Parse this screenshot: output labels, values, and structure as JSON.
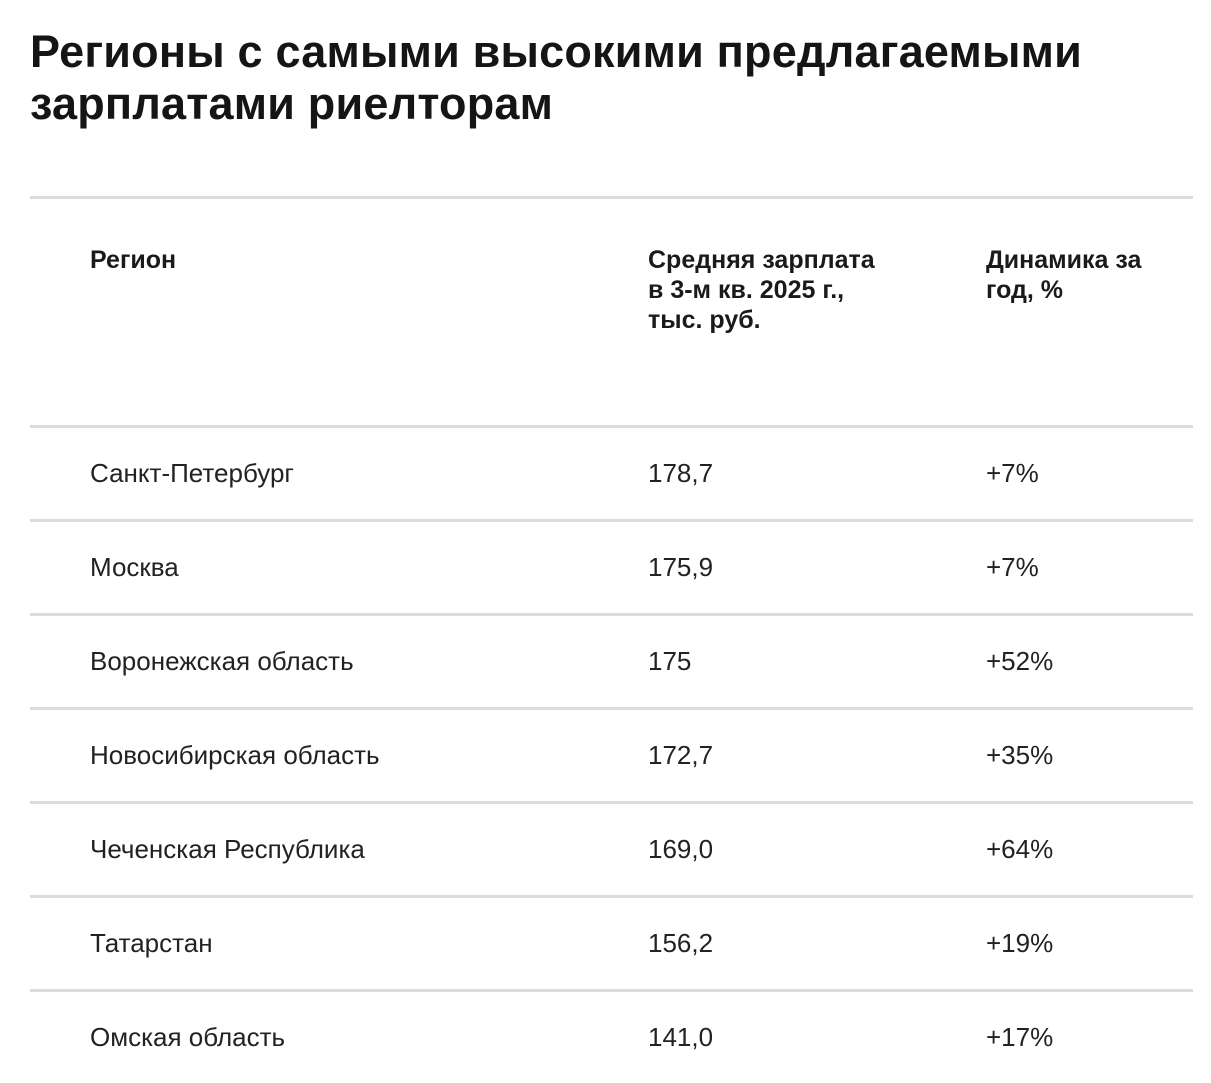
{
  "title": "Регионы с самыми высокими предлагаемыми зарплатами риелторам",
  "table": {
    "headers": [
      "Регион",
      "Средняя зарплата в 3-м кв. 2025 г., тыс. руб.",
      "Динамика за год, %"
    ],
    "rows": [
      {
        "region": "Санкт-Петербург",
        "salary": "178,7",
        "change": "+7%"
      },
      {
        "region": "Москва",
        "salary": "175,9",
        "change": "+7%"
      },
      {
        "region": "Воронежская область",
        "salary": "175",
        "change": "+52%"
      },
      {
        "region": "Новосибирская область",
        "salary": "172,7",
        "change": "+35%"
      },
      {
        "region": "Чеченская Республика",
        "salary": "169,0",
        "change": "+64%"
      },
      {
        "region": "Татарстан",
        "salary": "156,2",
        "change": "+19%"
      },
      {
        "region": "Омская область",
        "salary": "141,0",
        "change": "+17%"
      }
    ]
  }
}
